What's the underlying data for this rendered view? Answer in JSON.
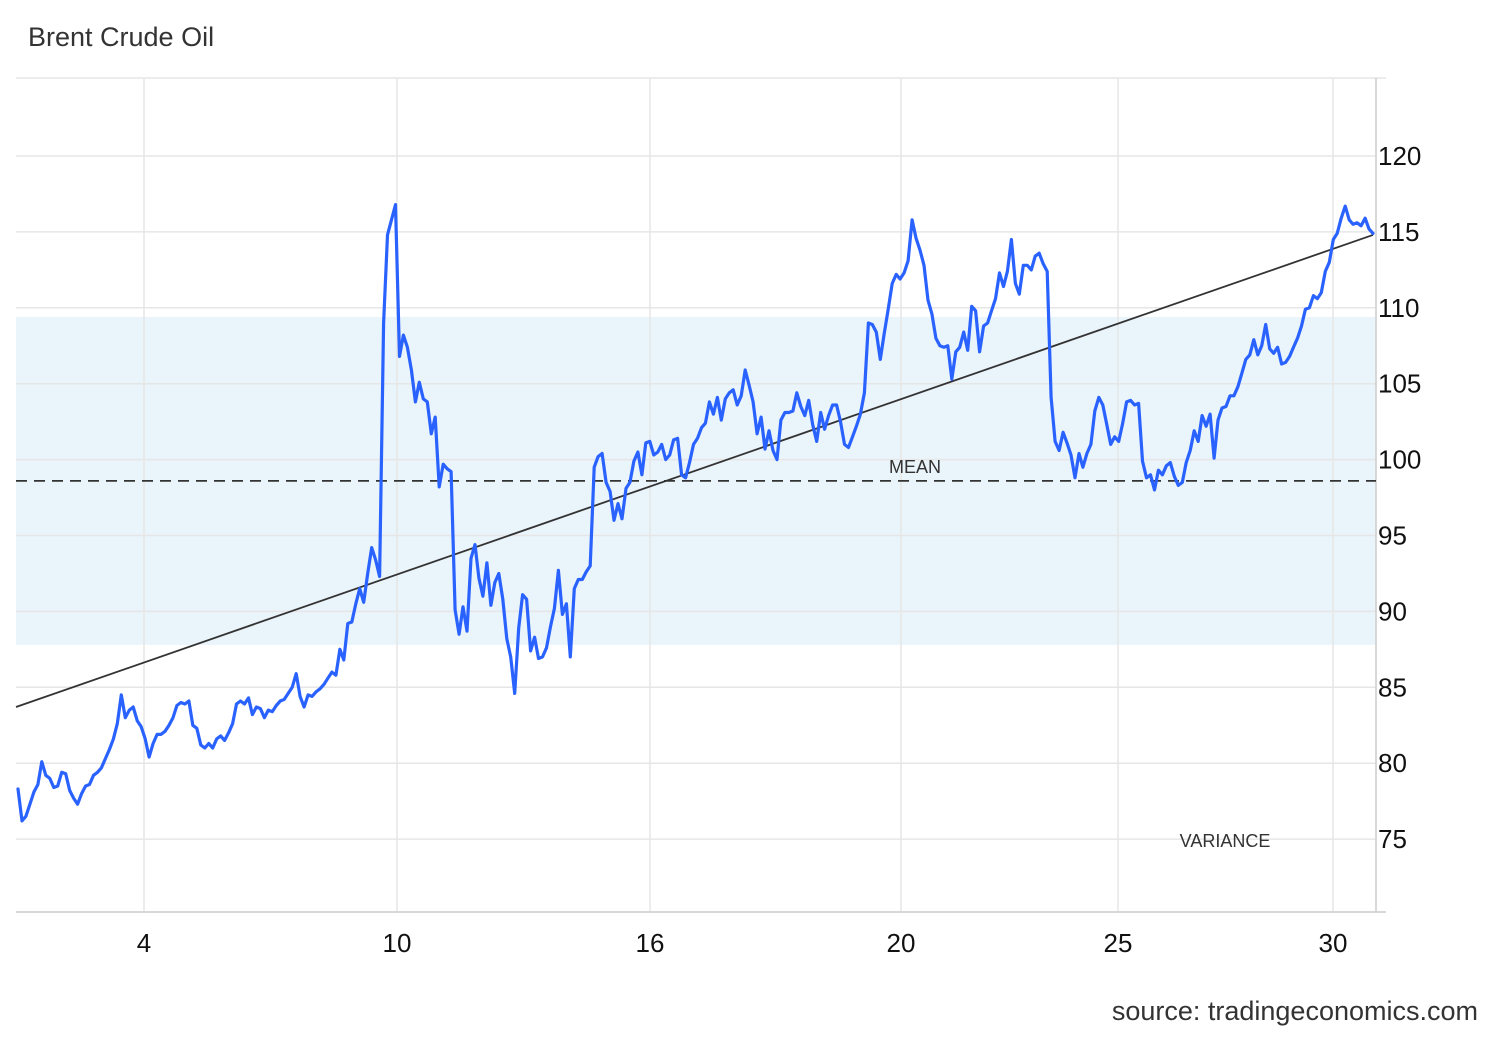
{
  "title": "Brent Crude Oil",
  "source": "source: tradingeconomics.com",
  "colors": {
    "line": "#2962ff",
    "trend": "#333333",
    "mean": "#333333",
    "band": "#eaf4fb",
    "grid": "#e6e6e6"
  },
  "chart_data": {
    "type": "line",
    "title": "Brent Crude Oil",
    "xlabel": "",
    "ylabel": "",
    "x_tick_labels": [
      "4",
      "10",
      "16",
      "20",
      "25",
      "30"
    ],
    "y_ticks": [
      75,
      80,
      85,
      90,
      95,
      100,
      105,
      110,
      115,
      120
    ],
    "ylim": [
      70,
      125
    ],
    "grid": true,
    "legend": "none",
    "annotations": {
      "mean_label": "MEAN",
      "variance_label": "VARIANCE"
    },
    "mean": 98.6,
    "variance_band": [
      87.8,
      109.4
    ],
    "trend": {
      "start": 83.7,
      "end": 114.8
    },
    "series": [
      {
        "values": [
          78.3,
          76.2,
          76.5,
          77.3,
          78.1,
          78.6,
          80.1,
          79.2,
          79.0,
          78.4,
          78.5,
          79.4,
          79.3,
          78.2,
          77.7,
          77.3,
          78.0,
          78.5,
          78.6,
          79.2,
          79.4,
          79.7,
          80.3,
          80.9,
          81.6,
          82.6,
          84.5,
          83.0,
          83.5,
          83.7,
          82.8,
          82.4,
          81.6,
          80.4,
          81.3,
          81.9,
          81.9,
          82.1,
          82.5,
          83.0,
          83.8,
          84.0,
          83.9,
          84.1,
          82.5,
          82.3,
          81.2,
          81.0,
          81.3,
          81.0,
          81.6,
          81.8,
          81.5,
          82.0,
          82.6,
          83.9,
          84.1,
          83.9,
          84.3,
          83.2,
          83.7,
          83.6,
          83.0,
          83.5,
          83.4,
          83.8,
          84.1,
          84.2,
          84.6,
          85.0,
          85.9,
          84.4,
          83.7,
          84.5,
          84.4,
          84.7,
          84.9,
          85.2,
          85.6,
          86.0,
          85.8,
          87.5,
          86.8,
          89.2,
          89.3,
          90.5,
          91.5,
          90.6,
          92.5,
          94.2,
          93.4,
          92.3,
          109.0,
          114.8,
          115.8,
          116.8,
          106.8,
          108.2,
          107.4,
          105.9,
          103.8,
          105.1,
          104.0,
          103.8,
          101.7,
          102.8,
          98.2,
          99.7,
          99.4,
          99.2,
          90.1,
          88.5,
          90.3,
          88.7,
          93.5,
          94.4,
          92.2,
          91.0,
          93.2,
          90.4,
          91.9,
          92.5,
          90.8,
          88.2,
          87.0,
          84.6,
          88.9,
          91.1,
          90.8,
          87.4,
          88.3,
          86.9,
          87.0,
          87.6,
          89.0,
          90.2,
          92.7,
          89.8,
          90.5,
          87.0,
          91.5,
          92.1,
          92.1,
          92.6,
          93.0,
          99.5,
          100.2,
          100.4,
          98.5,
          97.9,
          96.0,
          97.1,
          96.1,
          98.1,
          98.5,
          99.9,
          100.5,
          99.0,
          101.1,
          101.2,
          100.3,
          100.5,
          101.0,
          100.0,
          100.3,
          101.3,
          101.4,
          99.0,
          98.8,
          99.8,
          101.0,
          101.4,
          102.1,
          102.4,
          103.8,
          103.0,
          104.1,
          102.6,
          104.0,
          104.4,
          104.6,
          103.6,
          104.2,
          105.9,
          104.9,
          103.8,
          101.7,
          102.8,
          100.7,
          101.9,
          100.6,
          100.0,
          102.6,
          103.1,
          103.1,
          103.2,
          104.4,
          103.5,
          102.9,
          103.9,
          102.3,
          101.2,
          103.1,
          102.0,
          102.9,
          103.6,
          103.6,
          102.5,
          101.0,
          100.8,
          101.5,
          102.2,
          103.0,
          104.4,
          109.0,
          108.9,
          108.4,
          106.6,
          108.3,
          109.9,
          111.6,
          112.2,
          111.9,
          112.3,
          113.1,
          115.8,
          114.6,
          113.8,
          112.8,
          110.5,
          109.6,
          108.0,
          107.5,
          107.4,
          107.5,
          105.3,
          107.1,
          107.4,
          108.4,
          107.2,
          110.1,
          109.8,
          107.1,
          108.8,
          109.0,
          109.8,
          110.6,
          112.3,
          111.4,
          112.4,
          114.5,
          111.6,
          110.9,
          112.8,
          112.8,
          112.5,
          113.4,
          113.6,
          112.9,
          112.4,
          104.1,
          101.2,
          100.6,
          101.8,
          101.1,
          100.3,
          98.8,
          100.4,
          99.5,
          100.4,
          101.0,
          103.2,
          104.1,
          103.6,
          102.3,
          101.0,
          101.5,
          101.2,
          102.4,
          103.8,
          103.9,
          103.6,
          103.7,
          99.9,
          98.8,
          99.0,
          98.0,
          99.3,
          99.0,
          99.6,
          99.8,
          98.9,
          98.3,
          98.5,
          99.8,
          100.6,
          101.9,
          101.2,
          102.9,
          102.2,
          103.0,
          100.1,
          102.6,
          103.4,
          103.5,
          104.2,
          104.2,
          104.8,
          105.7,
          106.6,
          106.9,
          107.9,
          106.9,
          107.5,
          108.9,
          107.3,
          107.0,
          107.4,
          106.3,
          106.4,
          106.8,
          107.4,
          108.0,
          108.8,
          109.9,
          110.0,
          110.8,
          110.6,
          111.0,
          112.4,
          113.0,
          114.5,
          114.9,
          115.9,
          116.7,
          115.8,
          115.5,
          115.6,
          115.4,
          115.9,
          115.2,
          114.9
        ]
      }
    ]
  }
}
